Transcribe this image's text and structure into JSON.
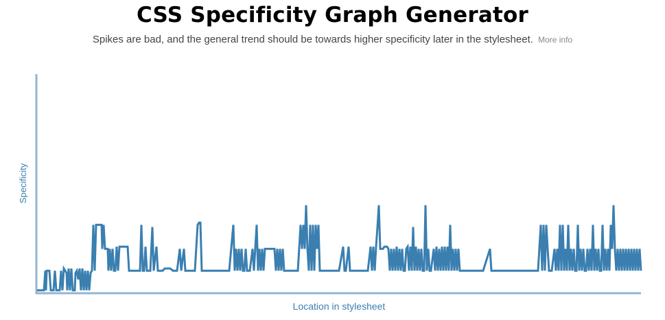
{
  "header": {
    "title": "CSS Specificity Graph Generator",
    "subtitle": "Spikes are bad, and the general trend should be towards higher specificity later in the stylesheet.",
    "more_info_label": "More info"
  },
  "colors": {
    "line": "#3a7fb0",
    "axis": "#8fb6d4",
    "axis_label": "#3a7fb0"
  },
  "chart_data": {
    "type": "line",
    "title": "CSS Specificity Graph Generator",
    "xlabel": "Location in stylesheet",
    "ylabel": "Specificity",
    "grid": false,
    "x_range": [
      0,
      880
    ],
    "ylim": [
      0,
      100
    ],
    "series": [
      {
        "points": [
          [
            0,
            1
          ],
          [
            10,
            1
          ],
          [
            12,
            10
          ],
          [
            13,
            1
          ],
          [
            14,
            10
          ],
          [
            18,
            10
          ],
          [
            20,
            1
          ],
          [
            24,
            1
          ],
          [
            26,
            10
          ],
          [
            28,
            1
          ],
          [
            33,
            1
          ],
          [
            35,
            10
          ],
          [
            37,
            1
          ],
          [
            39,
            11
          ],
          [
            41,
            10
          ],
          [
            43,
            9
          ],
          [
            44,
            1
          ],
          [
            46,
            11
          ],
          [
            48,
            1
          ],
          [
            50,
            11
          ],
          [
            52,
            1
          ],
          [
            55,
            1
          ],
          [
            56,
            9
          ],
          [
            58,
            10
          ],
          [
            60,
            6
          ],
          [
            62,
            11
          ],
          [
            64,
            1
          ],
          [
            66,
            11
          ],
          [
            68,
            1
          ],
          [
            70,
            10
          ],
          [
            72,
            1
          ],
          [
            74,
            10
          ],
          [
            76,
            1
          ],
          [
            78,
            9
          ],
          [
            80,
            10
          ],
          [
            82,
            31
          ],
          [
            84,
            10
          ],
          [
            86,
            31
          ],
          [
            88,
            31
          ],
          [
            90,
            31
          ],
          [
            92,
            31
          ],
          [
            94,
            31
          ],
          [
            95,
            20
          ],
          [
            97,
            31
          ],
          [
            99,
            20
          ],
          [
            101,
            20
          ],
          [
            103,
            20
          ],
          [
            104,
            10
          ],
          [
            106,
            20
          ],
          [
            108,
            10
          ],
          [
            110,
            20
          ],
          [
            112,
            10
          ],
          [
            114,
            10
          ],
          [
            116,
            21
          ],
          [
            118,
            10
          ],
          [
            120,
            21
          ],
          [
            122,
            21
          ],
          [
            124,
            21
          ],
          [
            126,
            21
          ],
          [
            128,
            21
          ],
          [
            130,
            21
          ],
          [
            132,
            21
          ],
          [
            134,
            10
          ],
          [
            136,
            10
          ],
          [
            140,
            10
          ],
          [
            145,
            10
          ],
          [
            150,
            10
          ],
          [
            152,
            31
          ],
          [
            154,
            10
          ],
          [
            156,
            10
          ],
          [
            158,
            21
          ],
          [
            160,
            10
          ],
          [
            162,
            10
          ],
          [
            165,
            10
          ],
          [
            168,
            30
          ],
          [
            170,
            10
          ],
          [
            174,
            21
          ],
          [
            176,
            10
          ],
          [
            180,
            10
          ],
          [
            183,
            10
          ],
          [
            186,
            11
          ],
          [
            190,
            11
          ],
          [
            194,
            11
          ],
          [
            198,
            10
          ],
          [
            204,
            10
          ],
          [
            208,
            20
          ],
          [
            210,
            10
          ],
          [
            214,
            20
          ],
          [
            216,
            10
          ],
          [
            220,
            10
          ],
          [
            226,
            10
          ],
          [
            230,
            10
          ],
          [
            234,
            31
          ],
          [
            236,
            32
          ],
          [
            238,
            32
          ],
          [
            240,
            10
          ],
          [
            244,
            10
          ],
          [
            250,
            10
          ],
          [
            260,
            10
          ],
          [
            270,
            10
          ],
          [
            280,
            10
          ],
          [
            286,
            31
          ],
          [
            288,
            10
          ],
          [
            290,
            20
          ],
          [
            292,
            10
          ],
          [
            294,
            20
          ],
          [
            296,
            10
          ],
          [
            298,
            20
          ],
          [
            300,
            10
          ],
          [
            302,
            10
          ],
          [
            304,
            20
          ],
          [
            306,
            10
          ],
          [
            310,
            10
          ],
          [
            314,
            20
          ],
          [
            316,
            10
          ],
          [
            320,
            31
          ],
          [
            322,
            10
          ],
          [
            324,
            20
          ],
          [
            326,
            10
          ],
          [
            328,
            20
          ],
          [
            330,
            10
          ],
          [
            332,
            20
          ],
          [
            334,
            20
          ],
          [
            336,
            20
          ],
          [
            338,
            20
          ],
          [
            340,
            20
          ],
          [
            342,
            20
          ],
          [
            344,
            20
          ],
          [
            346,
            20
          ],
          [
            348,
            10
          ],
          [
            350,
            20
          ],
          [
            352,
            10
          ],
          [
            354,
            20
          ],
          [
            356,
            10
          ],
          [
            358,
            20
          ],
          [
            360,
            10
          ],
          [
            364,
            10
          ],
          [
            370,
            10
          ],
          [
            376,
            10
          ],
          [
            380,
            10
          ],
          [
            384,
            31
          ],
          [
            386,
            20
          ],
          [
            388,
            31
          ],
          [
            390,
            20
          ],
          [
            392,
            40
          ],
          [
            394,
            20
          ],
          [
            396,
            10
          ],
          [
            398,
            31
          ],
          [
            400,
            10
          ],
          [
            402,
            31
          ],
          [
            404,
            10
          ],
          [
            406,
            31
          ],
          [
            408,
            20
          ],
          [
            410,
            31
          ],
          [
            412,
            10
          ],
          [
            414,
            10
          ],
          [
            420,
            10
          ],
          [
            430,
            10
          ],
          [
            440,
            10
          ],
          [
            446,
            21
          ],
          [
            448,
            10
          ],
          [
            450,
            10
          ],
          [
            454,
            21
          ],
          [
            456,
            10
          ],
          [
            460,
            10
          ],
          [
            462,
            10
          ],
          [
            466,
            10
          ],
          [
            470,
            10
          ],
          [
            474,
            10
          ],
          [
            478,
            10
          ],
          [
            482,
            10
          ],
          [
            486,
            21
          ],
          [
            488,
            10
          ],
          [
            490,
            21
          ],
          [
            492,
            10
          ],
          [
            494,
            21
          ],
          [
            496,
            30
          ],
          [
            498,
            40
          ],
          [
            500,
            20
          ],
          [
            502,
            20
          ],
          [
            504,
            20
          ],
          [
            506,
            21
          ],
          [
            508,
            21
          ],
          [
            510,
            21
          ],
          [
            512,
            20
          ],
          [
            514,
            10
          ],
          [
            516,
            20
          ],
          [
            518,
            10
          ],
          [
            520,
            20
          ],
          [
            522,
            10
          ],
          [
            524,
            21
          ],
          [
            526,
            10
          ],
          [
            528,
            20
          ],
          [
            530,
            10
          ],
          [
            532,
            20
          ],
          [
            534,
            10
          ],
          [
            536,
            10
          ],
          [
            538,
            20
          ],
          [
            540,
            21
          ],
          [
            542,
            10
          ],
          [
            544,
            21
          ],
          [
            546,
            10
          ],
          [
            548,
            30
          ],
          [
            550,
            10
          ],
          [
            552,
            21
          ],
          [
            554,
            10
          ],
          [
            556,
            20
          ],
          [
            558,
            10
          ],
          [
            560,
            20
          ],
          [
            562,
            10
          ],
          [
            564,
            10
          ],
          [
            566,
            40
          ],
          [
            568,
            10
          ],
          [
            570,
            20
          ],
          [
            572,
            10
          ],
          [
            574,
            10
          ],
          [
            578,
            20
          ],
          [
            580,
            10
          ],
          [
            582,
            21
          ],
          [
            584,
            10
          ],
          [
            586,
            20
          ],
          [
            588,
            10
          ],
          [
            590,
            21
          ],
          [
            592,
            10
          ],
          [
            594,
            21
          ],
          [
            596,
            10
          ],
          [
            598,
            21
          ],
          [
            600,
            10
          ],
          [
            602,
            31
          ],
          [
            604,
            10
          ],
          [
            606,
            20
          ],
          [
            608,
            10
          ],
          [
            610,
            20
          ],
          [
            612,
            10
          ],
          [
            614,
            20
          ],
          [
            616,
            10
          ],
          [
            618,
            10
          ],
          [
            622,
            10
          ],
          [
            626,
            10
          ],
          [
            630,
            10
          ],
          [
            640,
            10
          ],
          [
            650,
            10
          ],
          [
            660,
            20
          ],
          [
            662,
            10
          ],
          [
            664,
            10
          ],
          [
            670,
            10
          ],
          [
            680,
            10
          ],
          [
            690,
            10
          ],
          [
            700,
            10
          ],
          [
            710,
            10
          ],
          [
            720,
            10
          ],
          [
            730,
            10
          ],
          [
            734,
            31
          ],
          [
            736,
            10
          ],
          [
            738,
            31
          ],
          [
            740,
            10
          ],
          [
            742,
            31
          ],
          [
            744,
            20
          ],
          [
            746,
            10
          ],
          [
            750,
            10
          ],
          [
            754,
            20
          ],
          [
            756,
            10
          ],
          [
            758,
            20
          ],
          [
            760,
            10
          ],
          [
            762,
            31
          ],
          [
            764,
            10
          ],
          [
            766,
            31
          ],
          [
            768,
            10
          ],
          [
            770,
            20
          ],
          [
            772,
            10
          ],
          [
            774,
            31
          ],
          [
            776,
            10
          ],
          [
            778,
            20
          ],
          [
            780,
            10
          ],
          [
            782,
            20
          ],
          [
            784,
            10
          ],
          [
            786,
            10
          ],
          [
            788,
            31
          ],
          [
            790,
            10
          ],
          [
            792,
            20
          ],
          [
            794,
            10
          ],
          [
            796,
            20
          ],
          [
            798,
            10
          ],
          [
            800,
            10
          ],
          [
            802,
            20
          ],
          [
            804,
            10
          ],
          [
            806,
            20
          ],
          [
            808,
            10
          ],
          [
            810,
            31
          ],
          [
            812,
            10
          ],
          [
            814,
            20
          ],
          [
            816,
            10
          ],
          [
            818,
            20
          ],
          [
            820,
            10
          ],
          [
            822,
            10
          ],
          [
            824,
            31
          ],
          [
            826,
            10
          ],
          [
            828,
            20
          ],
          [
            830,
            10
          ],
          [
            832,
            20
          ],
          [
            834,
            10
          ],
          [
            836,
            31
          ],
          [
            838,
            20
          ],
          [
            840,
            40
          ],
          [
            842,
            20
          ],
          [
            844,
            10
          ],
          [
            846,
            20
          ],
          [
            848,
            10
          ],
          [
            850,
            20
          ],
          [
            852,
            10
          ],
          [
            854,
            20
          ],
          [
            856,
            10
          ],
          [
            858,
            20
          ],
          [
            860,
            10
          ],
          [
            862,
            20
          ],
          [
            864,
            10
          ],
          [
            866,
            20
          ],
          [
            868,
            10
          ],
          [
            870,
            20
          ],
          [
            872,
            10
          ],
          [
            874,
            20
          ],
          [
            876,
            10
          ],
          [
            878,
            20
          ],
          [
            880,
            10
          ]
        ]
      }
    ]
  }
}
